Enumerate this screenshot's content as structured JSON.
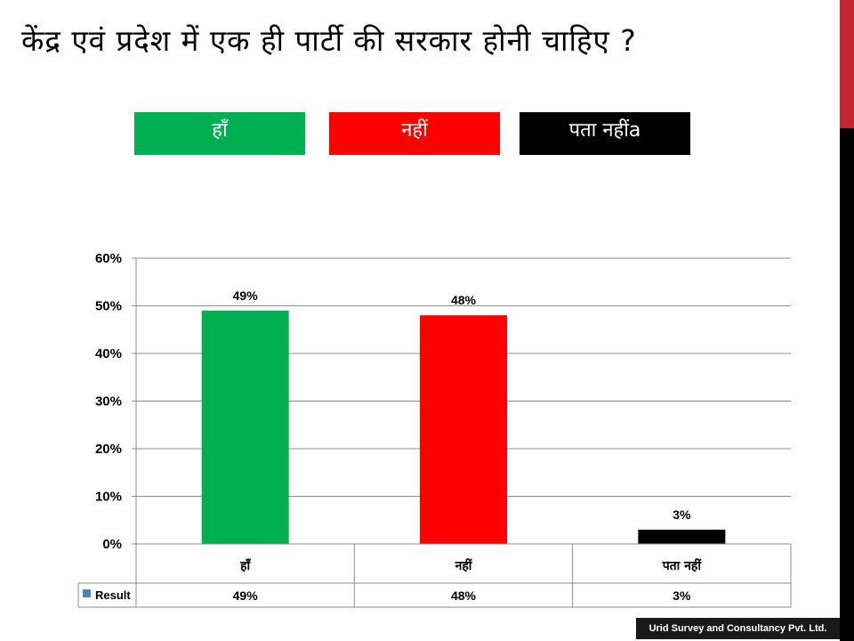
{
  "title": "केंद्र एवं प्रदेश में एक ही पार्टी की सरकार होनी चाहिए ?",
  "legend_boxes": [
    {
      "label": "हाँ",
      "color": "#00B050"
    },
    {
      "label": "नहीं",
      "color": "#FF0000"
    },
    {
      "label": "पता नहींa",
      "color": "#000000"
    }
  ],
  "accent_color": "#C0272D",
  "chart_data": {
    "type": "bar",
    "categories": [
      "हाँ",
      "नहीं",
      "पता नहीं"
    ],
    "series": [
      {
        "name": "Result",
        "values": [
          49,
          48,
          3
        ],
        "colors": [
          "#00B050",
          "#FF0000",
          "#000000"
        ]
      }
    ],
    "data_labels": [
      "49%",
      "48%",
      "3%"
    ],
    "y_ticks": [
      "0%",
      "10%",
      "20%",
      "30%",
      "40%",
      "50%",
      "60%"
    ],
    "ylim": [
      0,
      60
    ],
    "grid": true,
    "data_table": {
      "legend_label": "Result",
      "legend_color": "#4F81BD",
      "values": [
        "49%",
        "48%",
        "3%"
      ]
    }
  },
  "footer": "Urid Survey and Consultancy Pvt. Ltd."
}
